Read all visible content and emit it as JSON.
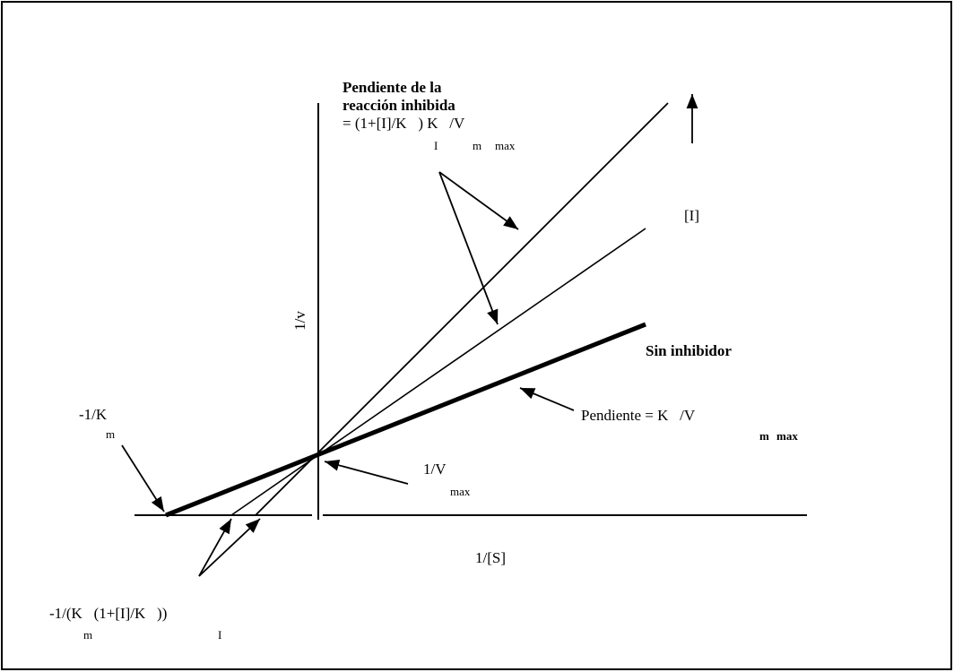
{
  "inhibited_slope": {
    "line1": "Pendiente de la",
    "line2": "reacción inhibida",
    "line3": "= (1+[I]/K   ) K   /V",
    "sub1": "I",
    "sub2": "m",
    "sub3": "max"
  },
  "inhibitor_label": "[I]",
  "y_axis_label": "1/v",
  "no_inhibitor": "Sin inhibidor",
  "slope": {
    "main": "Pendiente = K   /V",
    "sub1": "m",
    "sub2": "max"
  },
  "neg_inv_km": {
    "main": "-1/K",
    "sub": "m"
  },
  "inv_vmax": {
    "main": "1/V",
    "sub": "max"
  },
  "x_axis_label": "1/[S]",
  "inhibited_intercept": {
    "main": "-1/(K   (1+[I]/K   ))",
    "sub1": "m",
    "sub2": "I"
  }
}
